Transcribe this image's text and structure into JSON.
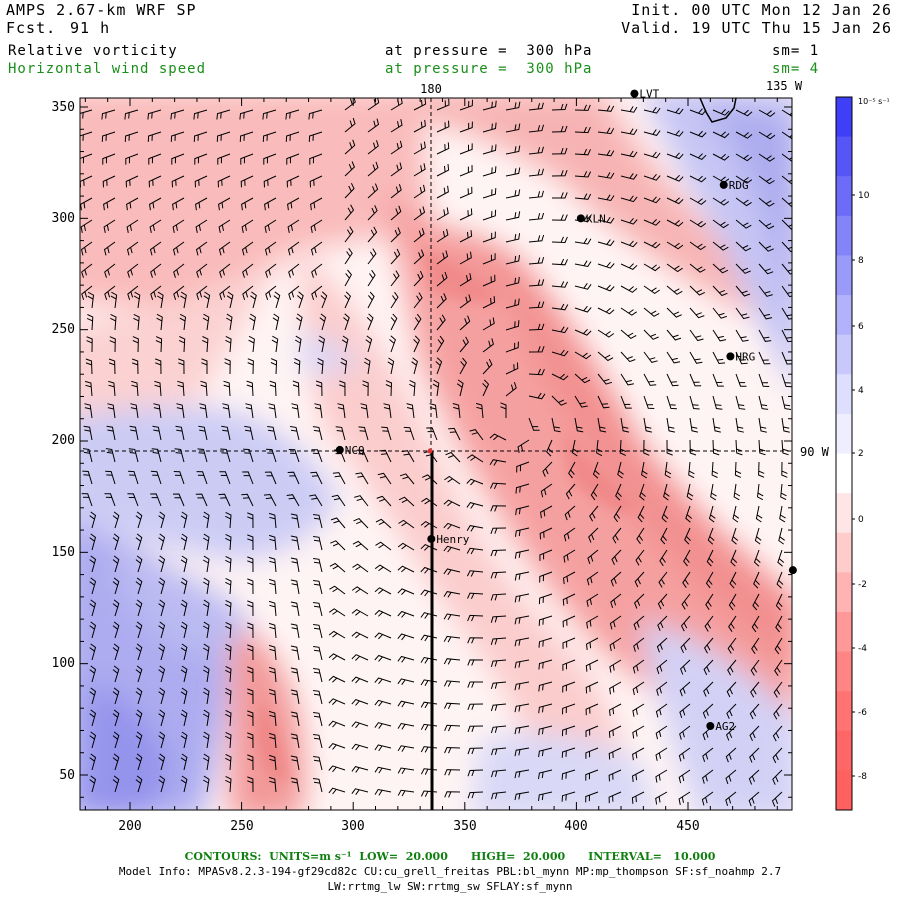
{
  "header": {
    "model": "AMPS 2.67-km WRF SP",
    "fcst_label": "Fcst.",
    "fcst_value": "91 h",
    "init": "Init. 00 UTC Mon 12 Jan 26",
    "valid": "Valid. 19 UTC Thu 15 Jan 26",
    "field1": "Relative vorticity",
    "field1_level": "at pressure =  300 hPa",
    "field1_sm": "sm= 1",
    "field2": "Horizontal wind speed",
    "field2_level": "at pressure =  300 hPa",
    "field2_sm": "sm= 4"
  },
  "map": {
    "top_labels": [
      "180",
      "135 W"
    ],
    "right_label": "90 W",
    "x_ticks": [
      "200",
      "250",
      "300",
      "350",
      "400",
      "450"
    ],
    "y_ticks": [
      "50",
      "100",
      "150",
      "200",
      "250",
      "300",
      "350"
    ],
    "stations": [
      {
        "name": "RDG",
        "x": 466,
        "y": 315
      },
      {
        "name": "KLN",
        "x": 402,
        "y": 300
      },
      {
        "name": "HRG",
        "x": 469,
        "y": 238
      },
      {
        "name": "NCQ",
        "x": 294,
        "y": 196
      },
      {
        "name": "Henry",
        "x": 335,
        "y": 156
      },
      {
        "name": "AG2",
        "x": 460,
        "y": 72
      },
      {
        "name": "LVT",
        "x": 426,
        "y": 356
      }
    ],
    "unlabeled_stations": [
      {
        "x": 497,
        "y": 142
      }
    ],
    "colors": {
      "positive": "#4040ff",
      "negative": "#ff6b6b",
      "grid_line": "#000000"
    }
  },
  "colorbar": {
    "units": "10⁻⁵ s⁻¹",
    "labels": [
      "10",
      "8",
      "6",
      "4",
      "2",
      "0",
      "-2",
      "-4",
      "-6",
      "-8"
    ]
  },
  "footer": {
    "contours": "CONTOURS:  UNITS=m s⁻¹  LOW=  20.000      HIGH=  20.000      INTERVAL=   10.000",
    "model_info": "Model Info: MPASv8.2.3-194-gf29cd82c CU:cu_grell_freitas PBL:bl_mynn MP:mp_thompson SF:sf_noahmp 2.7",
    "model_info2": "LW:rrtmg_lw SW:rrtmg_sw SFLAY:sf_mynn"
  }
}
